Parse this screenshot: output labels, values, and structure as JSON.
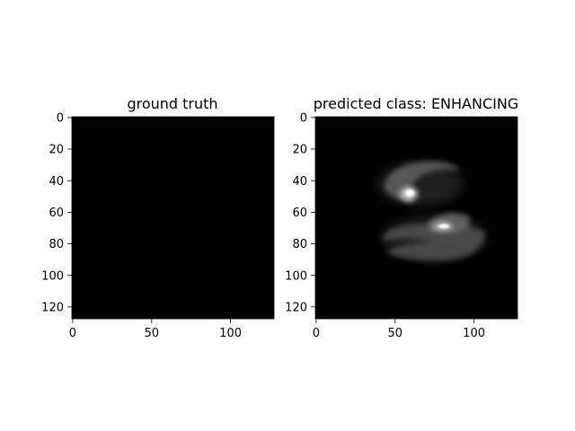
{
  "panels": [
    {
      "title": "ground truth",
      "x_ticks": [
        "0",
        "50",
        "100"
      ],
      "y_ticks": [
        "0",
        "20",
        "40",
        "60",
        "80",
        "100",
        "120"
      ],
      "image": "blank-black-mask",
      "x_range": [
        0,
        128
      ],
      "y_range": [
        0,
        128
      ]
    },
    {
      "title": "predicted class: ENHANCING",
      "x_ticks": [
        "0",
        "50",
        "100"
      ],
      "y_ticks": [
        "0",
        "20",
        "40",
        "60",
        "80",
        "100",
        "120"
      ],
      "image": "grayscale-prediction-heatmap",
      "x_range": [
        0,
        128
      ],
      "y_range": [
        0,
        128
      ]
    }
  ],
  "colors": {
    "background": "#000000",
    "axis": "#000000",
    "blob": "#ffffff"
  }
}
